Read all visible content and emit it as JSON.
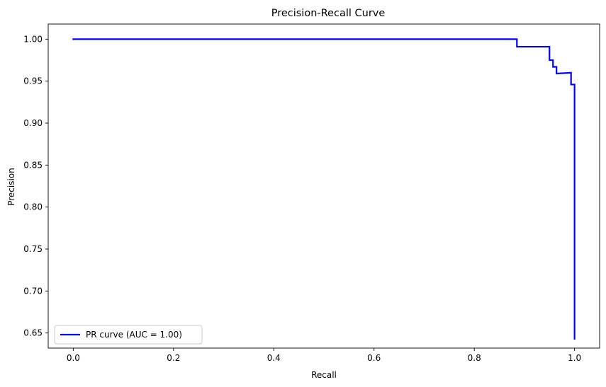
{
  "chart_data": {
    "type": "line",
    "title": "Precision-Recall Curve",
    "xlabel": "Recall",
    "ylabel": "Precision",
    "xlim": [
      -0.05,
      1.05
    ],
    "ylim": [
      0.632,
      1.018
    ],
    "xticks": [
      0.0,
      0.2,
      0.4,
      0.6,
      0.8,
      1.0
    ],
    "xtick_labels": [
      "0.0",
      "0.2",
      "0.4",
      "0.6",
      "0.8",
      "1.0"
    ],
    "yticks": [
      0.65,
      0.7,
      0.75,
      0.8,
      0.85,
      0.9,
      0.95,
      1.0
    ],
    "ytick_labels": [
      "0.65",
      "0.70",
      "0.75",
      "0.80",
      "0.85",
      "0.90",
      "0.95",
      "1.00"
    ],
    "grid": false,
    "legend_position": "lower-left",
    "series": [
      {
        "name": "PR curve (AUC = 1.00)",
        "color": "#0000ff",
        "x": [
          0.0,
          0.885,
          0.885,
          0.95,
          0.95,
          0.957,
          0.957,
          0.964,
          0.964,
          0.993,
          0.993,
          1.0,
          1.0
        ],
        "y": [
          1.0,
          1.0,
          0.991,
          0.991,
          0.975,
          0.975,
          0.967,
          0.967,
          0.959,
          0.96,
          0.946,
          0.946,
          0.643
        ]
      }
    ]
  }
}
